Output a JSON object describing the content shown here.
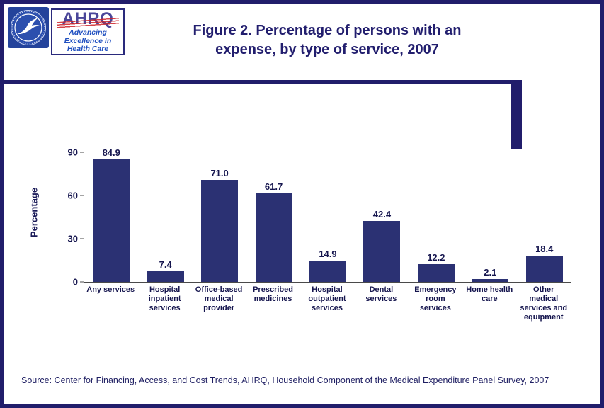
{
  "header": {
    "hhs_logo": {
      "icon": "hhs-eagle-seal"
    },
    "ahrq_logo": {
      "acronym": "AHRQ",
      "tagline": "Advancing\nExcellence in\nHealth Care"
    },
    "title_line1": "Figure 2. Percentage of persons with an",
    "title_line2": "expense, by type of service, 2007"
  },
  "chart_data": {
    "type": "bar",
    "title": "Figure 2. Percentage of persons with an expense, by type of service, 2007",
    "ylabel": "Percentage",
    "xlabel": "",
    "ylim": [
      0,
      90
    ],
    "yticks": [
      0,
      30,
      60,
      90
    ],
    "grid": false,
    "legend": "none",
    "bar_color": "#2b3173",
    "categories": [
      "Any services",
      "Hospital inpatient services",
      "Office-based medical provider",
      "Prescribed medicines",
      "Hospital outpatient services",
      "Dental services",
      "Emergency room services",
      "Home health care",
      "Other medical services and equipment"
    ],
    "categories_display": [
      "Any services",
      "Hospital\ninpatient\nservices",
      "Office-based\nmedical\nprovider",
      "Prescribed\nmedicines",
      "Hospital\noutpatient\nservices",
      "Dental\nservices",
      "Emergency\nroom\nservices",
      "Home health\ncare",
      "Other\nmedical\nservices and\nequipment"
    ],
    "values": [
      84.9,
      7.4,
      71.0,
      61.7,
      14.9,
      42.4,
      12.2,
      2.1,
      18.4
    ],
    "value_labels": [
      "84.9",
      "7.4",
      "71.0",
      "61.7",
      "14.9",
      "42.4",
      "12.2",
      "2.1",
      "18.4"
    ]
  },
  "footer": {
    "source": "Source: Center for Financing, Access, and Cost Trends, AHRQ, Household Component of the Medical Expenditure Panel Survey, 2007"
  }
}
